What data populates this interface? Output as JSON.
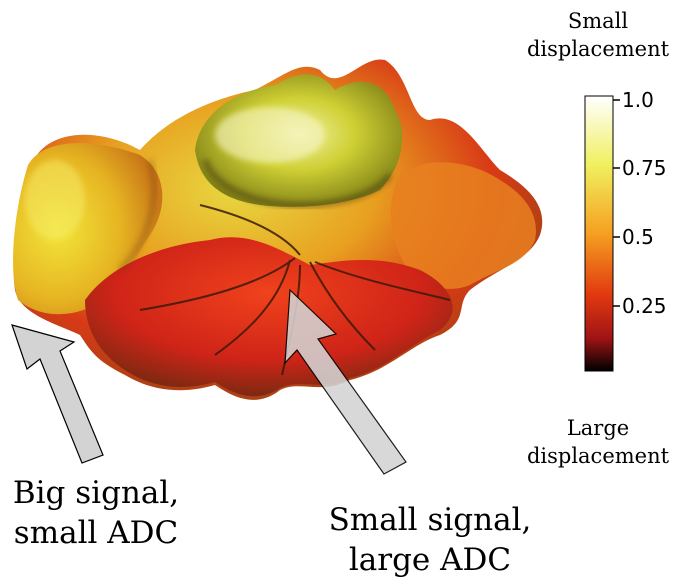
{
  "colorbar": {
    "top_label_lines": [
      "Small",
      "displacement"
    ],
    "bottom_label_lines": [
      "Large",
      "displacement"
    ],
    "ticks": [
      "1.0",
      "0.75",
      "0.5",
      "0.25"
    ],
    "colors": [
      "#ffffff",
      "#f0f060",
      "#f5a020",
      "#e23a10",
      "#c01818",
      "#000000"
    ]
  },
  "annotations": {
    "left_lines": [
      "Big signal,",
      "small ADC"
    ],
    "right_lines": [
      "Small signal,",
      "large ADC"
    ]
  },
  "surface_colors": {
    "yellow": "#d8d22c",
    "orange": "#e88a1c",
    "red": "#d8281a",
    "dark": "#5a3a10"
  },
  "arrow_fill": "#d3d3d3"
}
